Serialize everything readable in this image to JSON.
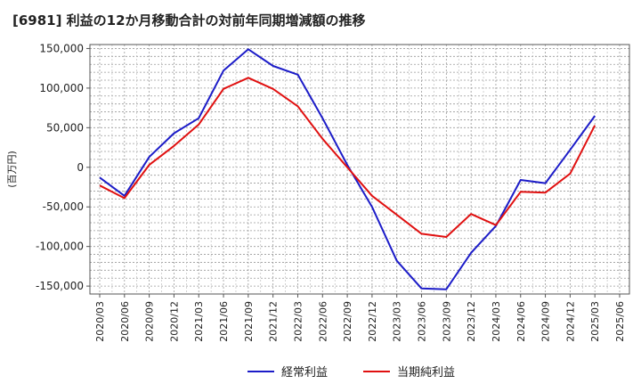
{
  "chart_data": {
    "type": "line",
    "title": "[6981]  利益の12か月移動合計の対前年同期増減額の推移",
    "ylabel": "(百万円)",
    "xlabel": "",
    "ylim": [
      -160000,
      155000
    ],
    "yticks": [
      150000,
      100000,
      50000,
      0,
      -50000,
      -100000,
      -150000
    ],
    "ytick_labels": [
      "150,000",
      "100,000",
      "50,000",
      "0",
      "-50,000",
      "-100,000",
      "-150,000"
    ],
    "x": [
      "2020/03",
      "2020/06",
      "2020/09",
      "2020/12",
      "2021/03",
      "2021/06",
      "2021/09",
      "2021/12",
      "2022/03",
      "2022/06",
      "2022/09",
      "2022/12",
      "2023/03",
      "2023/06",
      "2023/09",
      "2023/12",
      "2024/03",
      "2024/06",
      "2024/09",
      "2024/12",
      "2025/03",
      "2025/06"
    ],
    "grid": true,
    "legend_position": "bottom",
    "series": [
      {
        "name": "経常利益",
        "color": "#1c1cc8",
        "values": [
          -13000,
          -36000,
          13000,
          43000,
          62000,
          122000,
          149000,
          128000,
          117000,
          62000,
          3000,
          -50000,
          -118000,
          -153000,
          -154000,
          -108000,
          -74000,
          -16000,
          -20000,
          22000,
          65000,
          null
        ]
      },
      {
        "name": "当期純利益",
        "color": "#e01010",
        "values": [
          -23000,
          -39000,
          3000,
          27000,
          54000,
          99000,
          113000,
          99000,
          77000,
          36000,
          0,
          -36000,
          -60000,
          -84000,
          -88000,
          -59000,
          -73000,
          -31000,
          -32000,
          -8000,
          53000,
          null
        ]
      }
    ]
  }
}
